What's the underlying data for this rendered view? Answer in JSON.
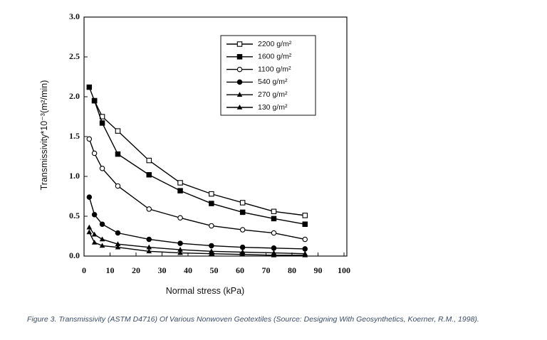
{
  "chart_data": {
    "type": "line",
    "xlabel": "Normal stress (kPa)",
    "ylabel": "Transmissivity*10⁻³(m²/min)",
    "x": [
      2,
      4,
      7,
      13,
      25,
      37,
      49,
      61,
      73,
      85
    ],
    "series": [
      {
        "name": "2200 g/m²",
        "color": "#000000",
        "marker": "open-square",
        "values": [
          null,
          1.95,
          1.75,
          1.57,
          1.2,
          0.92,
          0.78,
          0.67,
          0.56,
          0.51
        ]
      },
      {
        "name": "1600 g/m²",
        "color": "#000000",
        "marker": "square",
        "values": [
          2.12,
          1.95,
          1.67,
          1.28,
          1.02,
          0.82,
          0.66,
          0.55,
          0.47,
          0.4
        ]
      },
      {
        "name": "1100 g/m²",
        "color": "#000000",
        "marker": "open-circle",
        "values": [
          1.47,
          1.29,
          1.1,
          0.88,
          0.59,
          0.48,
          0.38,
          0.33,
          0.29,
          0.21
        ]
      },
      {
        "name": "540 g/m²",
        "color": "#000000",
        "marker": "circle",
        "values": [
          0.74,
          0.52,
          0.4,
          0.29,
          0.21,
          0.16,
          0.13,
          0.11,
          0.1,
          0.09
        ]
      },
      {
        "name": "270 g/m²",
        "color": "#000000",
        "marker": "triangle",
        "values": [
          0.36,
          0.27,
          0.21,
          0.15,
          0.11,
          0.08,
          0.06,
          0.05,
          0.04,
          0.03
        ]
      },
      {
        "name": "130 g/m²",
        "color": "#000000",
        "marker": "triangle",
        "values": [
          0.3,
          0.17,
          0.13,
          0.11,
          0.06,
          0.04,
          0.03,
          0.02,
          0.01,
          0.01
        ]
      }
    ],
    "xlim": [
      0,
      100
    ],
    "xticks": [
      0,
      10,
      20,
      30,
      40,
      50,
      60,
      70,
      80,
      90,
      100
    ],
    "ylim": [
      0,
      3
    ],
    "yticks": [
      {
        "value": 0,
        "label": "0.0"
      },
      0.5,
      {
        "value": 1,
        "label": "1.0"
      },
      1.5,
      {
        "value": 2,
        "label": "2.0"
      },
      2.5,
      {
        "value": 3,
        "label": "3.0"
      }
    ],
    "legend": "upper right"
  },
  "caption": "Figure 3. Transmissivity (ASTM D4716) Of Various Nonwoven Geotextiles (Source: Designing With Geosynthetics, Koerner, R.M., 1998)."
}
